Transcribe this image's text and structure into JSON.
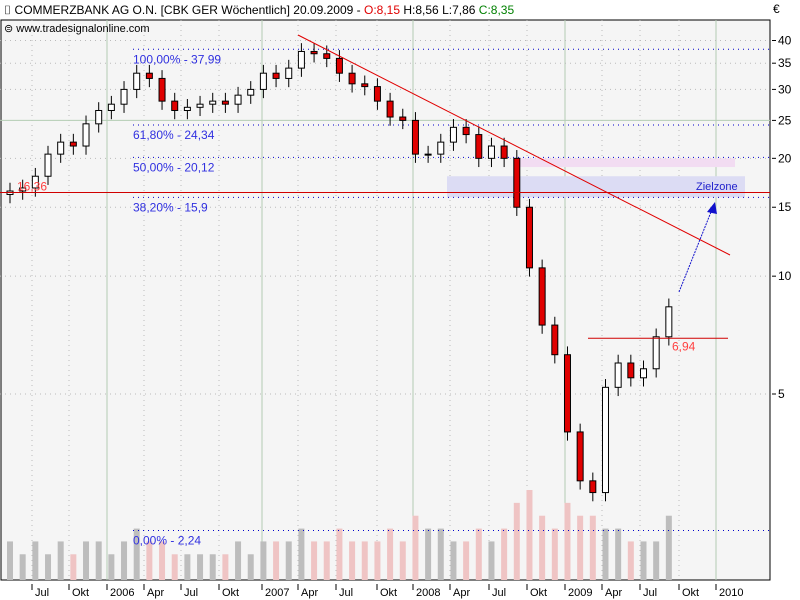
{
  "header": {
    "symbol_icon": "candle-icon",
    "title": "COMMERZBANK AG O.N. [CBK GER  Wöchentlich] 20.09.2009 - ",
    "open": "O:8,15",
    "high": "H:8,56",
    "low": "L:7,86",
    "close": "C:8,35",
    "source": "www.tradesignalonline.com",
    "source_icon": "link-icon"
  },
  "chart_data": {
    "type": "candlestick",
    "title": "COMMERZBANK AG O.N. [CBK GER  Wöchentlich]",
    "ylabel": "€",
    "y_scale": "log",
    "ylim": [
      2.0,
      45
    ],
    "y_ticks": [
      "40",
      "35",
      "30",
      "25",
      "20",
      "15",
      "10",
      "5"
    ],
    "x_ticks": [
      "Jul",
      "Okt",
      "2006",
      "Apr",
      "Jul",
      "Okt",
      "2007",
      "Apr",
      "Jul",
      "Okt",
      "2008",
      "Apr",
      "Jul",
      "Okt",
      "2009",
      "Apr",
      "Jul",
      "Okt",
      "2010"
    ],
    "grid": true,
    "months": [
      "2005-05",
      "2005-06",
      "2005-07",
      "2005-08",
      "2005-09",
      "2005-10",
      "2005-11",
      "2005-12",
      "2006-01",
      "2006-02",
      "2006-03",
      "2006-04",
      "2006-05",
      "2006-06",
      "2006-07",
      "2006-08",
      "2006-09",
      "2006-10",
      "2006-11",
      "2006-12",
      "2007-01",
      "2007-02",
      "2007-03",
      "2007-04",
      "2007-05",
      "2007-06",
      "2007-07",
      "2007-08",
      "2007-09",
      "2007-10",
      "2007-11",
      "2007-12",
      "2008-01",
      "2008-02",
      "2008-03",
      "2008-04",
      "2008-05",
      "2008-06",
      "2008-07",
      "2008-08",
      "2008-09",
      "2008-10",
      "2008-11",
      "2008-12",
      "2009-01",
      "2009-02",
      "2009-03",
      "2009-04",
      "2009-05",
      "2009-06",
      "2009-07",
      "2009-08",
      "2009-09"
    ],
    "close": [
      16.5,
      16.8,
      18,
      20.5,
      22,
      21.5,
      24.5,
      26.5,
      27.5,
      30,
      33,
      32,
      28,
      26.5,
      27,
      27.5,
      28,
      27.5,
      29,
      30,
      33,
      32,
      34,
      37.5,
      37,
      36,
      33,
      31,
      30.5,
      28,
      25.5,
      25,
      20.5,
      20.5,
      22,
      24,
      23,
      20,
      21.5,
      20,
      15,
      10.5,
      7.5,
      6.3,
      4,
      3,
      2.8,
      5.2,
      6,
      5.5,
      5.8,
      7,
      8.35
    ],
    "volume": [
      3,
      2,
      3,
      2,
      3,
      2,
      3,
      3,
      2,
      3,
      4,
      3,
      3,
      2,
      2,
      2,
      2,
      2,
      3,
      2,
      3,
      3,
      3,
      4,
      3,
      3,
      4,
      3,
      3,
      3,
      4,
      3,
      5,
      4,
      4,
      3,
      3,
      4,
      3,
      4,
      6,
      7,
      5,
      4,
      6,
      5,
      5,
      4,
      4,
      3,
      3,
      3,
      5
    ],
    "fibonacci": [
      {
        "label": "100,00% - 37,99",
        "value": 37.99
      },
      {
        "label": "61,80% - 24,34",
        "value": 24.34
      },
      {
        "label": "50,00% - 20,12",
        "value": 20.12
      },
      {
        "label": "38,20% - 15,9",
        "value": 15.9
      },
      {
        "label": "0,00% - 2,24",
        "value": 2.24
      }
    ],
    "support_line": {
      "label": "16,36",
      "value": 16.36
    },
    "resistance_line": {
      "label": "6,94",
      "value": 6.94
    },
    "target_zone": {
      "label": "Zielzone",
      "from": 15.9,
      "to": 18.0
    },
    "colors": {
      "down": "#e00000",
      "up": "#ffffff",
      "fib": "#0000cc",
      "trend": "#e00000",
      "zone": "#dcdcf4",
      "zone2": "#f2dcf2",
      "arrow": "#1010cc"
    }
  }
}
